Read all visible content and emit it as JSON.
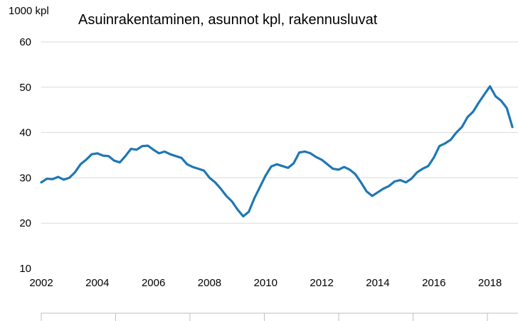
{
  "chart_data": {
    "type": "line",
    "title": "Asuinrakentaminen, asunnot kpl, rakennusluvat",
    "ylabel": "1000 kpl",
    "xlabel": "",
    "xlim": [
      2002,
      2019
    ],
    "ylim": [
      10,
      60
    ],
    "yticks": [
      10,
      20,
      30,
      40,
      50,
      60
    ],
    "xticks": [
      2002,
      2004,
      2006,
      2008,
      2010,
      2012,
      2014,
      2016,
      2018
    ],
    "grid": true,
    "legend": "none",
    "color": "#1f77b4",
    "series": [
      {
        "x": [
          2002.0,
          2002.2,
          2002.4,
          2002.6,
          2002.8,
          2003.0,
          2003.2,
          2003.4,
          2003.6,
          2003.8,
          2004.0,
          2004.2,
          2004.4,
          2004.6,
          2004.8,
          2005.0,
          2005.2,
          2005.4,
          2005.6,
          2005.8,
          2006.0,
          2006.2,
          2006.4,
          2006.6,
          2006.8,
          2007.0,
          2007.2,
          2007.4,
          2007.6,
          2007.8,
          2008.0,
          2008.2,
          2008.4,
          2008.6,
          2008.8,
          2009.0,
          2009.2,
          2009.4,
          2009.6,
          2009.8,
          2010.0,
          2010.2,
          2010.4,
          2010.6,
          2010.8,
          2011.0,
          2011.2,
          2011.4,
          2011.6,
          2011.8,
          2012.0,
          2012.2,
          2012.4,
          2012.6,
          2012.8,
          2013.0,
          2013.2,
          2013.4,
          2013.6,
          2013.8,
          2014.0,
          2014.2,
          2014.4,
          2014.6,
          2014.8,
          2015.0,
          2015.2,
          2015.4,
          2015.6,
          2015.8,
          2016.0,
          2016.2,
          2016.4,
          2016.6,
          2016.8,
          2017.0,
          2017.2,
          2017.4,
          2017.6,
          2017.8,
          2018.0,
          2018.2,
          2018.4,
          2018.6,
          2018.8
        ],
        "values": [
          29.0,
          29.8,
          29.7,
          30.2,
          29.6,
          30.0,
          31.2,
          33.0,
          34.0,
          35.2,
          35.4,
          34.9,
          34.8,
          33.8,
          33.4,
          34.8,
          36.4,
          36.2,
          37.0,
          37.1,
          36.2,
          35.4,
          35.8,
          35.2,
          34.8,
          34.4,
          33.0,
          32.4,
          32.0,
          31.6,
          30.0,
          29.0,
          27.6,
          26.0,
          24.8,
          23.0,
          21.5,
          22.5,
          25.5,
          28.0,
          30.5,
          32.5,
          33.0,
          32.6,
          32.2,
          33.2,
          35.6,
          35.8,
          35.4,
          34.6,
          34.0,
          33.0,
          32.0,
          31.8,
          32.4,
          31.8,
          30.8,
          29.0,
          27.0,
          26.0,
          26.8,
          27.6,
          28.2,
          29.2,
          29.5,
          29.0,
          29.8,
          31.2,
          32.0,
          32.6,
          34.5,
          37.0,
          37.6,
          38.4,
          40.0,
          41.2,
          43.4,
          44.6,
          46.6,
          48.4,
          50.2,
          48.0,
          47.0,
          45.4,
          41.2
        ]
      }
    ]
  }
}
